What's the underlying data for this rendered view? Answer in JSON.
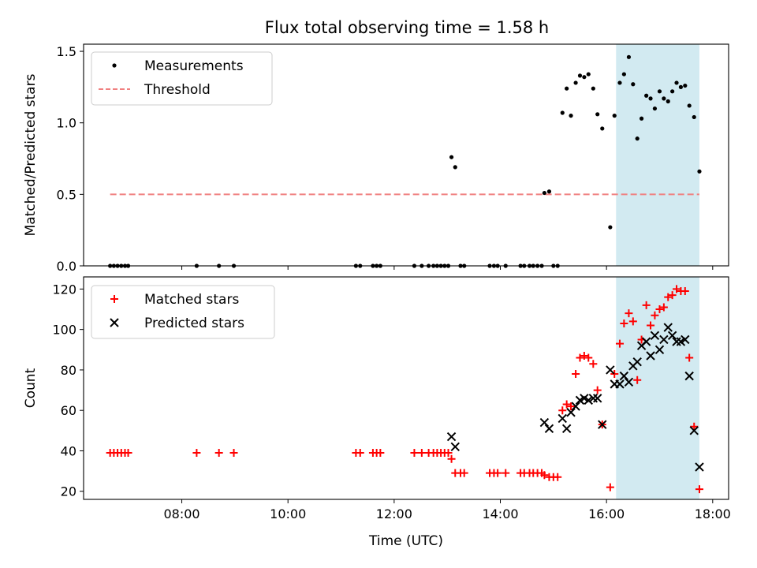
{
  "figure": {
    "title": "Flux total observing time = 1.58 h"
  },
  "chart_data": [
    {
      "type": "scatter",
      "panel": "top",
      "ylabel": "Matched/Predicted stars",
      "xlabel": "",
      "xlim": [
        6.15,
        18.3
      ],
      "ylim": [
        0,
        1.55
      ],
      "yticks": [
        0.0,
        0.5,
        1.0,
        1.5
      ],
      "ytick_labels": [
        "0.0",
        "0.5",
        "1.0",
        "1.5"
      ],
      "xticks": [
        8,
        10,
        12,
        14,
        16,
        18
      ],
      "xtick_labels": [
        "",
        "",
        "",
        "",
        "",
        ""
      ],
      "legend_position": "top-left",
      "shaded_region": {
        "x0": 16.18,
        "x1": 17.75,
        "color": "#add8e6"
      },
      "series": [
        {
          "name": "Measurements",
          "kind": "scatter",
          "marker": "dot",
          "color": "#000000",
          "points": [
            [
              6.65,
              0
            ],
            [
              6.72,
              0
            ],
            [
              6.79,
              0
            ],
            [
              6.86,
              0
            ],
            [
              6.93,
              0
            ],
            [
              6.99,
              0
            ],
            [
              8.28,
              0
            ],
            [
              8.7,
              0
            ],
            [
              8.98,
              0
            ],
            [
              11.28,
              0
            ],
            [
              11.36,
              0
            ],
            [
              11.6,
              0
            ],
            [
              11.67,
              0
            ],
            [
              11.74,
              0
            ],
            [
              12.38,
              0
            ],
            [
              12.52,
              0
            ],
            [
              12.65,
              0
            ],
            [
              12.74,
              0
            ],
            [
              12.81,
              0
            ],
            [
              12.88,
              0
            ],
            [
              12.95,
              0
            ],
            [
              13.02,
              0
            ],
            [
              13.08,
              0.76
            ],
            [
              13.15,
              0.69
            ],
            [
              13.25,
              0
            ],
            [
              13.32,
              0
            ],
            [
              13.8,
              0
            ],
            [
              13.88,
              0
            ],
            [
              13.95,
              0
            ],
            [
              14.1,
              0
            ],
            [
              14.38,
              0
            ],
            [
              14.45,
              0
            ],
            [
              14.55,
              0
            ],
            [
              14.62,
              0
            ],
            [
              14.7,
              0
            ],
            [
              14.78,
              0
            ],
            [
              14.83,
              0.51
            ],
            [
              14.92,
              0.52
            ],
            [
              15.0,
              0
            ],
            [
              15.08,
              0
            ],
            [
              15.17,
              1.07
            ],
            [
              15.25,
              1.24
            ],
            [
              15.33,
              1.05
            ],
            [
              15.42,
              1.28
            ],
            [
              15.5,
              1.33
            ],
            [
              15.58,
              1.32
            ],
            [
              15.66,
              1.34
            ],
            [
              15.75,
              1.24
            ],
            [
              15.83,
              1.06
            ],
            [
              15.92,
              0.96
            ],
            [
              16.07,
              0.27
            ],
            [
              16.15,
              1.05
            ],
            [
              16.25,
              1.28
            ],
            [
              16.33,
              1.34
            ],
            [
              16.42,
              1.46
            ],
            [
              16.5,
              1.27
            ],
            [
              16.58,
              0.89
            ],
            [
              16.66,
              1.03
            ],
            [
              16.75,
              1.19
            ],
            [
              16.83,
              1.17
            ],
            [
              16.91,
              1.1
            ],
            [
              17.0,
              1.22
            ],
            [
              17.08,
              1.17
            ],
            [
              17.16,
              1.15
            ],
            [
              17.24,
              1.22
            ],
            [
              17.32,
              1.28
            ],
            [
              17.4,
              1.25
            ],
            [
              17.48,
              1.26
            ],
            [
              17.56,
              1.12
            ],
            [
              17.65,
              1.04
            ],
            [
              17.75,
              0.66
            ]
          ]
        },
        {
          "name": "Threshold",
          "kind": "line",
          "dashed": true,
          "color": "#f08080",
          "points": [
            [
              6.65,
              0.5
            ],
            [
              17.75,
              0.5
            ]
          ]
        }
      ]
    },
    {
      "type": "scatter",
      "panel": "bottom",
      "ylabel": "Count",
      "xlabel": "Time (UTC)",
      "xlim": [
        6.15,
        18.3
      ],
      "ylim": [
        16,
        126
      ],
      "yticks": [
        20,
        40,
        60,
        80,
        100,
        120
      ],
      "ytick_labels": [
        "20",
        "40",
        "60",
        "80",
        "100",
        "120"
      ],
      "xticks": [
        8,
        10,
        12,
        14,
        16,
        18
      ],
      "xtick_labels": [
        "08:00",
        "10:00",
        "12:00",
        "14:00",
        "16:00",
        "18:00"
      ],
      "legend_position": "top-left",
      "shaded_region": {
        "x0": 16.18,
        "x1": 17.75,
        "color": "#add8e6"
      },
      "series": [
        {
          "name": "Matched stars",
          "kind": "scatter",
          "marker": "plus",
          "color": "#ff0000",
          "points": [
            [
              6.65,
              39
            ],
            [
              6.72,
              39
            ],
            [
              6.79,
              39
            ],
            [
              6.86,
              39
            ],
            [
              6.93,
              39
            ],
            [
              6.99,
              39
            ],
            [
              8.28,
              39
            ],
            [
              8.7,
              39
            ],
            [
              8.98,
              39
            ],
            [
              11.28,
              39
            ],
            [
              11.36,
              39
            ],
            [
              11.6,
              39
            ],
            [
              11.67,
              39
            ],
            [
              11.74,
              39
            ],
            [
              12.38,
              39
            ],
            [
              12.52,
              39
            ],
            [
              12.65,
              39
            ],
            [
              12.74,
              39
            ],
            [
              12.81,
              39
            ],
            [
              12.88,
              39
            ],
            [
              12.95,
              39
            ],
            [
              13.02,
              39
            ],
            [
              13.08,
              36
            ],
            [
              13.15,
              29
            ],
            [
              13.25,
              29
            ],
            [
              13.32,
              29
            ],
            [
              13.8,
              29
            ],
            [
              13.88,
              29
            ],
            [
              13.95,
              29
            ],
            [
              14.1,
              29
            ],
            [
              14.38,
              29
            ],
            [
              14.45,
              29
            ],
            [
              14.55,
              29
            ],
            [
              14.62,
              29
            ],
            [
              14.7,
              29
            ],
            [
              14.78,
              29
            ],
            [
              14.83,
              28
            ],
            [
              14.92,
              27
            ],
            [
              15.0,
              27
            ],
            [
              15.08,
              27
            ],
            [
              15.17,
              60
            ],
            [
              15.25,
              63
            ],
            [
              15.33,
              62
            ],
            [
              15.42,
              78
            ],
            [
              15.5,
              86
            ],
            [
              15.58,
              87
            ],
            [
              15.66,
              86
            ],
            [
              15.75,
              83
            ],
            [
              15.83,
              70
            ],
            [
              15.92,
              53
            ],
            [
              16.07,
              22
            ],
            [
              16.15,
              78
            ],
            [
              16.25,
              93
            ],
            [
              16.33,
              103
            ],
            [
              16.42,
              108
            ],
            [
              16.5,
              104
            ],
            [
              16.58,
              75
            ],
            [
              16.66,
              95
            ],
            [
              16.75,
              112
            ],
            [
              16.83,
              102
            ],
            [
              16.91,
              107
            ],
            [
              17.0,
              110
            ],
            [
              17.08,
              111
            ],
            [
              17.16,
              116
            ],
            [
              17.24,
              117
            ],
            [
              17.32,
              120
            ],
            [
              17.4,
              119
            ],
            [
              17.48,
              119
            ],
            [
              17.56,
              86
            ],
            [
              17.65,
              52
            ],
            [
              17.75,
              21
            ]
          ]
        },
        {
          "name": "Predicted stars",
          "kind": "scatter",
          "marker": "x",
          "color": "#000000",
          "points": [
            [
              13.08,
              47
            ],
            [
              13.15,
              42
            ],
            [
              14.83,
              54
            ],
            [
              14.92,
              51
            ],
            [
              15.17,
              56
            ],
            [
              15.25,
              51
            ],
            [
              15.33,
              59
            ],
            [
              15.42,
              62
            ],
            [
              15.5,
              65
            ],
            [
              15.58,
              66
            ],
            [
              15.66,
              65
            ],
            [
              15.75,
              66
            ],
            [
              15.83,
              66
            ],
            [
              15.92,
              53
            ],
            [
              16.07,
              80
            ],
            [
              16.15,
              73
            ],
            [
              16.25,
              73
            ],
            [
              16.33,
              77
            ],
            [
              16.42,
              74
            ],
            [
              16.5,
              82
            ],
            [
              16.58,
              84
            ],
            [
              16.66,
              92
            ],
            [
              16.75,
              94
            ],
            [
              16.83,
              87
            ],
            [
              16.91,
              97
            ],
            [
              17.0,
              90
            ],
            [
              17.08,
              95
            ],
            [
              17.16,
              101
            ],
            [
              17.24,
              97
            ],
            [
              17.32,
              94
            ],
            [
              17.4,
              94
            ],
            [
              17.48,
              95
            ],
            [
              17.56,
              77
            ],
            [
              17.65,
              50
            ],
            [
              17.75,
              32
            ]
          ]
        }
      ]
    }
  ]
}
